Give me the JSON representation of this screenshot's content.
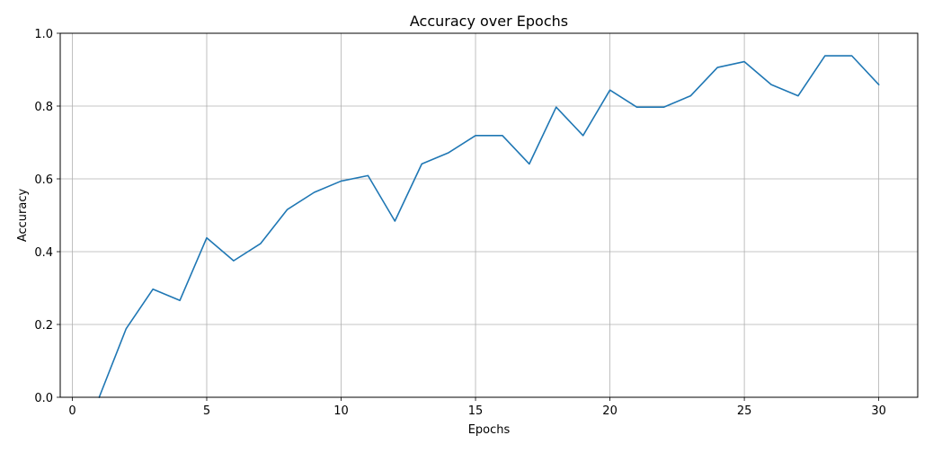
{
  "chart_data": {
    "type": "line",
    "title": "Accuracy over Epochs",
    "xlabel": "Epochs",
    "ylabel": "Accuracy",
    "xlim": [
      -0.45,
      31.45
    ],
    "ylim": [
      0,
      1
    ],
    "grid": true,
    "colors": {
      "line": "#1f77b4",
      "grid": "#b0b0b0",
      "axis": "#000000"
    },
    "x_ticks": [
      0,
      5,
      10,
      15,
      20,
      25,
      30
    ],
    "x_tick_labels": [
      "0",
      "5",
      "10",
      "15",
      "20",
      "25",
      "30"
    ],
    "y_ticks": [
      0,
      0.2,
      0.4,
      0.6,
      0.8,
      1.0
    ],
    "y_tick_labels": [
      "0.0",
      "0.2",
      "0.4",
      "0.6",
      "0.8",
      "1.0"
    ],
    "series": [
      {
        "name": "Accuracy",
        "x": [
          1,
          2,
          3,
          4,
          5,
          6,
          7,
          8,
          9,
          10,
          11,
          12,
          13,
          14,
          15,
          16,
          17,
          18,
          19,
          20,
          21,
          22,
          23,
          24,
          25,
          26,
          27,
          28,
          29,
          30
        ],
        "values": [
          0.0,
          0.188,
          0.297,
          0.266,
          0.438,
          0.375,
          0.422,
          0.516,
          0.563,
          0.594,
          0.609,
          0.484,
          0.641,
          0.672,
          0.719,
          0.719,
          0.641,
          0.797,
          0.719,
          0.844,
          0.797,
          0.797,
          0.828,
          0.906,
          0.922,
          0.859,
          0.828,
          0.938,
          0.938,
          0.859
        ]
      }
    ]
  }
}
